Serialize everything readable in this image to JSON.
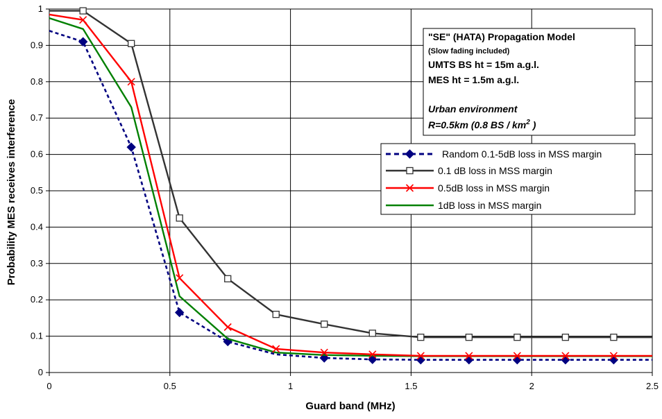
{
  "chart_data": {
    "type": "line",
    "xlabel": "Guard band (MHz)",
    "ylabel": "Probability MES receives interference",
    "xlim": [
      0,
      2.5
    ],
    "ylim": [
      0,
      1
    ],
    "x_ticks": [
      "0",
      "0.5",
      "1",
      "1.5",
      "2",
      "2.5"
    ],
    "y_ticks": [
      "0",
      "0.1",
      "0.2",
      "0.3",
      "0.4",
      "0.5",
      "0.6",
      "0.7",
      "0.8",
      "0.9",
      "1"
    ],
    "grid": true,
    "legend_position": "right",
    "annotation": {
      "line1": "\"SE\" (HATA) Propagation Model",
      "line2": "(Slow fading included)",
      "line3": "UMTS BS ht = 15m a.g.l.",
      "line4": "MES ht = 1.5m a.g.l.",
      "line5": "Urban environment",
      "line6_main": "R=0.5km (0.8 BS / km",
      "line6_sup": "2",
      "line6_end": " )"
    },
    "series": [
      {
        "name": "Random 0.1-5dB loss in MSS margin",
        "color": "#000080",
        "style": "dashed",
        "marker": "diamond",
        "x": [
          0,
          0.14,
          0.34,
          0.54,
          0.74,
          0.94,
          1.14,
          1.34,
          1.54,
          1.74,
          1.94,
          2.14,
          2.34,
          2.5
        ],
        "y": [
          0.94,
          0.91,
          0.62,
          0.165,
          0.085,
          0.05,
          0.04,
          0.036,
          0.035,
          0.035,
          0.035,
          0.035,
          0.035,
          0.035
        ],
        "marker_indices": [
          1,
          2,
          3,
          4,
          6,
          7,
          8,
          9,
          10,
          11,
          12
        ]
      },
      {
        "name": "0.1 dB loss in MSS margin",
        "color": "#333333",
        "style": "solid",
        "marker": "square",
        "x": [
          0,
          0.14,
          0.34,
          0.54,
          0.74,
          0.94,
          1.14,
          1.34,
          1.54,
          1.74,
          1.94,
          2.14,
          2.34,
          2.5
        ],
        "y": [
          0.995,
          0.995,
          0.905,
          0.425,
          0.258,
          0.16,
          0.133,
          0.108,
          0.097,
          0.097,
          0.097,
          0.097,
          0.097,
          0.097
        ],
        "marker_indices": [
          1,
          2,
          3,
          4,
          5,
          6,
          7,
          8,
          9,
          10,
          11,
          12
        ]
      },
      {
        "name": "0.5dB loss in MSS margin",
        "color": "#ff0000",
        "style": "solid",
        "marker": "x",
        "x": [
          0,
          0.14,
          0.34,
          0.54,
          0.74,
          0.94,
          1.14,
          1.34,
          1.54,
          1.74,
          1.94,
          2.14,
          2.34,
          2.5
        ],
        "y": [
          0.985,
          0.97,
          0.8,
          0.26,
          0.125,
          0.065,
          0.055,
          0.05,
          0.046,
          0.046,
          0.046,
          0.046,
          0.046,
          0.046
        ],
        "marker_indices": [
          1,
          2,
          3,
          4,
          5,
          6,
          7,
          8,
          9,
          10,
          11,
          12
        ]
      },
      {
        "name": "1dB loss in MSS margin",
        "color": "#008000",
        "style": "solid",
        "marker": "none",
        "x": [
          0,
          0.14,
          0.34,
          0.54,
          0.74,
          0.94,
          1.14,
          1.34,
          1.54,
          1.74,
          1.94,
          2.14,
          2.34,
          2.5
        ],
        "y": [
          0.975,
          0.945,
          0.73,
          0.21,
          0.093,
          0.055,
          0.048,
          0.046,
          0.045,
          0.045,
          0.045,
          0.045,
          0.045,
          0.045
        ],
        "marker_indices": []
      }
    ]
  }
}
